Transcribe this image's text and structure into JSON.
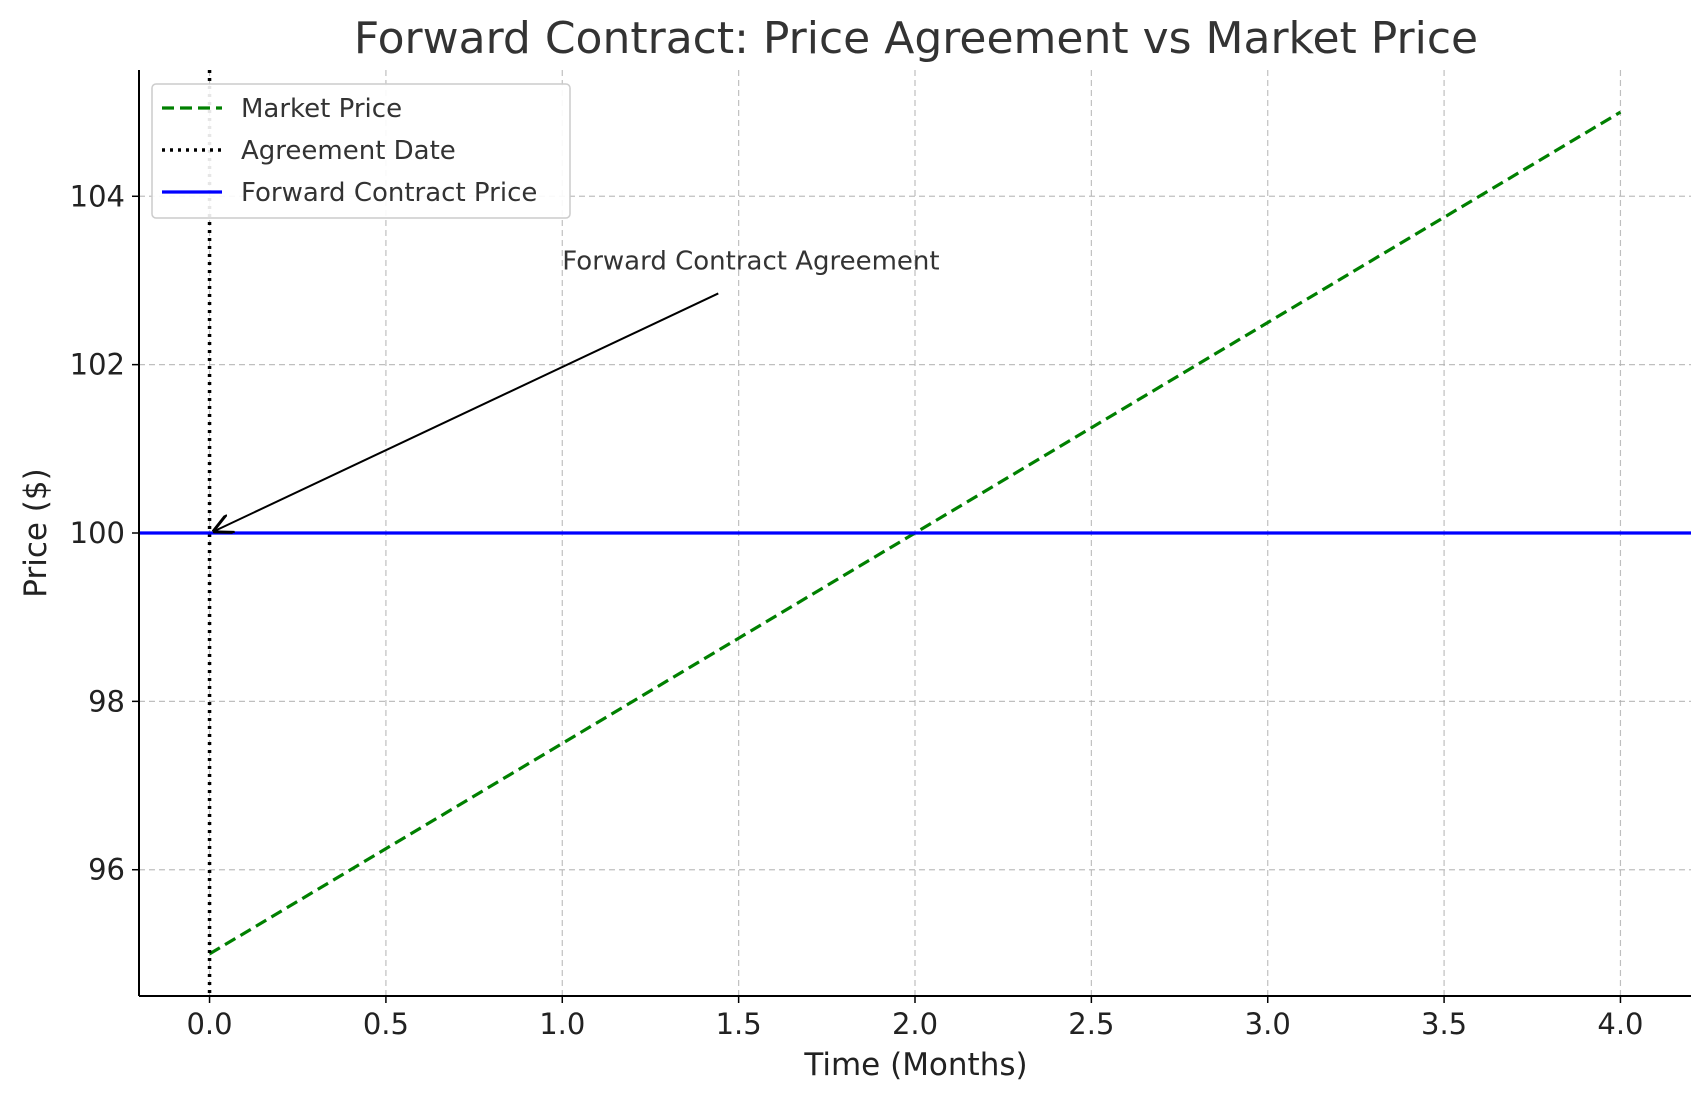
{
  "chart_data": {
    "type": "line",
    "title": "Forward Contract: Price Agreement vs Market Price",
    "xlabel": "Time (Months)",
    "ylabel": "Price ($)",
    "xlim": [
      -0.2,
      4.2
    ],
    "ylim": [
      94.5,
      105.5
    ],
    "xticks": [
      0.0,
      0.5,
      1.0,
      1.5,
      2.0,
      2.5,
      3.0,
      3.5,
      4.0
    ],
    "xtick_labels": [
      "0.0",
      "0.5",
      "1.0",
      "1.5",
      "2.0",
      "2.5",
      "3.0",
      "3.5",
      "4.0"
    ],
    "yticks": [
      96,
      98,
      100,
      102,
      104
    ],
    "ytick_labels": [
      "96",
      "98",
      "100",
      "102",
      "104"
    ],
    "grid": true,
    "legend_position": "top-left",
    "series": [
      {
        "name": "Market Price",
        "style": "dashed",
        "color": "#008000",
        "x": [
          0,
          4
        ],
        "y": [
          95,
          105
        ]
      },
      {
        "name": "Agreement Date",
        "style": "dotted",
        "color": "#000000",
        "kind": "vline",
        "x": 0
      },
      {
        "name": "Forward Contract Price",
        "style": "solid",
        "color": "#0000ff",
        "kind": "hline",
        "y": 100
      }
    ],
    "annotations": [
      {
        "text": "Forward Contract Agreement",
        "point": [
          0,
          100
        ],
        "text_at": [
          1.0,
          103
        ]
      }
    ]
  }
}
